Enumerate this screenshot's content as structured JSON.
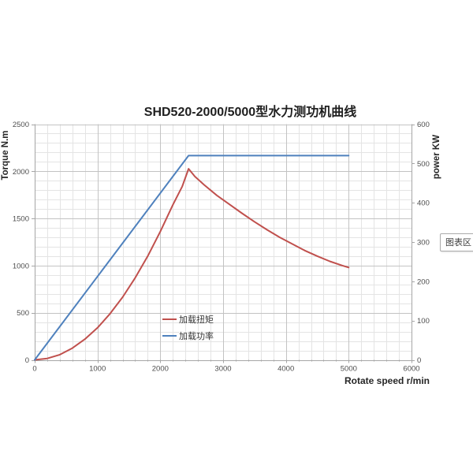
{
  "tooltip": {
    "label": "图表区"
  },
  "chart_data": {
    "type": "line",
    "title": "SHD520-2000/5000型水力测功机曲线",
    "xlabel": "Rotate speed r/min",
    "ylabel_left": "Torque N.m",
    "ylabel_right": "power KW",
    "xlim": [
      0,
      6000
    ],
    "ylim_left": [
      0,
      2500
    ],
    "ylim_right": [
      0,
      600
    ],
    "x_ticks": [
      "0",
      "1000",
      "2000",
      "3000",
      "4000",
      "5000",
      "6000"
    ],
    "y_left_ticks": [
      "0",
      "500",
      "1000",
      "1500",
      "2000",
      "2500"
    ],
    "y_right_ticks": [
      "0",
      "100",
      "200",
      "300",
      "400",
      "500",
      "600"
    ],
    "x_major_step": 1000,
    "x_minor_step": 200,
    "y_major_step": 500,
    "y_minor_step": 100,
    "grid": "major+minor",
    "legend_position": "inside-lower-center",
    "colors": {
      "grid_minor": "#e4e4e4",
      "grid_major": "#c3c3c3",
      "axis_line": "#a6a6a6",
      "tick_label": "#4d4d4d"
    },
    "series": [
      {
        "name": "加载扭矩",
        "axis": "left",
        "color": "#c0504d",
        "points": [
          [
            0,
            0
          ],
          [
            200,
            15
          ],
          [
            400,
            55
          ],
          [
            600,
            125
          ],
          [
            800,
            220
          ],
          [
            1000,
            340
          ],
          [
            1200,
            490
          ],
          [
            1400,
            665
          ],
          [
            1600,
            870
          ],
          [
            1800,
            1100
          ],
          [
            2000,
            1360
          ],
          [
            2200,
            1645
          ],
          [
            2350,
            1840
          ],
          [
            2450,
            2027
          ],
          [
            2550,
            1945
          ],
          [
            2700,
            1855
          ],
          [
            2900,
            1745
          ],
          [
            3100,
            1650
          ],
          [
            3300,
            1555
          ],
          [
            3500,
            1465
          ],
          [
            3700,
            1380
          ],
          [
            3900,
            1300
          ],
          [
            4100,
            1230
          ],
          [
            4300,
            1160
          ],
          [
            4500,
            1100
          ],
          [
            4700,
            1045
          ],
          [
            4900,
            1000
          ],
          [
            5000,
            980
          ]
        ]
      },
      {
        "name": "加载功率",
        "axis": "right",
        "color": "#4f81bd",
        "points": [
          [
            0,
            0
          ],
          [
            2450,
            520
          ],
          [
            5000,
            520
          ]
        ]
      }
    ]
  }
}
